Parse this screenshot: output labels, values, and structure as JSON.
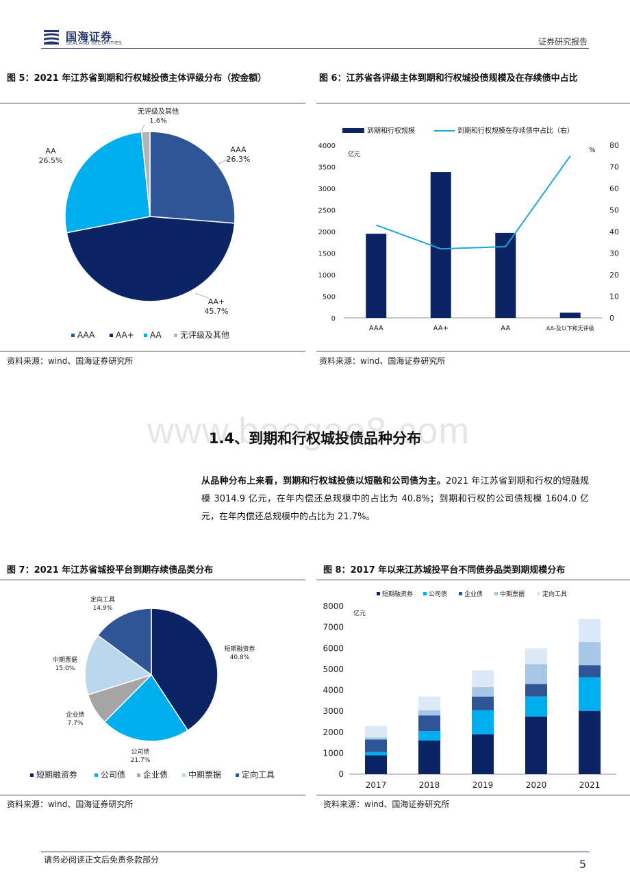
{
  "header": {
    "logo_cn": "国海证券",
    "logo_en": "SEALAND SECURITIES",
    "right": "证券研究报告"
  },
  "fig5": {
    "title": "图 5：2021 年江苏省到期和行权城投债主体评级分布（按金额）",
    "source": "资料来源：wind、国海证券研究所",
    "chart_data": {
      "type": "pie",
      "title": "",
      "slices": [
        {
          "name": "AAA",
          "value": 26.3,
          "label": "26.3%",
          "color": "#2e5596"
        },
        {
          "name": "AA+",
          "value": 45.7,
          "label": "45.7%",
          "color": "#0b2564"
        },
        {
          "name": "AA",
          "value": 26.5,
          "label": "26.5%",
          "color": "#00adef"
        },
        {
          "name": "无评级及其他",
          "value": 1.6,
          "label": "1.6%",
          "color": "#b4b4b4"
        }
      ],
      "legend": [
        "AAA",
        "AA+",
        "AA",
        "无评级及其他"
      ],
      "legend_position": "bottom"
    }
  },
  "fig6": {
    "title": "图 6：江苏省各评级主体到期和行权城投债规模及在存续债中占比",
    "source": "资料来源：wind、国海证券研究所",
    "chart_data": {
      "type": "bar",
      "categories": [
        "AAA",
        "AA+",
        "AA",
        "AA-及以下和无评级"
      ],
      "series": [
        {
          "name": "到期和行权规模",
          "type": "bar",
          "axis": "left",
          "values": [
            1950,
            3380,
            1970,
            120
          ],
          "color": "#0b2564"
        },
        {
          "name": "到期和行权规模在存续债中占比（右）",
          "type": "line",
          "axis": "right",
          "values": [
            43,
            32,
            33,
            75
          ],
          "color": "#1ea6e0"
        }
      ],
      "y_left": {
        "unit": "亿元",
        "min": 0,
        "max": 4000,
        "ticks": [
          0,
          500,
          1000,
          1500,
          2000,
          2500,
          3000,
          3500,
          4000
        ]
      },
      "y_right": {
        "unit": "%",
        "min": 0,
        "max": 80,
        "ticks": [
          0,
          10,
          20,
          30,
          40,
          50,
          60,
          70,
          80
        ]
      },
      "legend_position": "top"
    }
  },
  "section": {
    "heading": "1.4、到期和行权城投债品种分布",
    "watermark": "www.baogao8.com",
    "para_bold": "从品种分布上来看，到期和行权城投债以短融和公司债为主。",
    "para_rest": "2021 年江苏省到期和行权的短融规模 3014.9 亿元，在年内偿还总规模中的占比为 40.8%；到期和行权的公司债规模 1604.0 亿元，在年内偿还总规模中的占比为 21.7%。"
  },
  "fig7": {
    "title": "图 7：2021 年江苏省城投平台到期存续债品类分布",
    "source": "资料来源：wind、国海证券研究所",
    "chart_data": {
      "type": "pie",
      "title": "",
      "slices": [
        {
          "name": "短期融资券",
          "value": 40.8,
          "label": "40.8%",
          "color": "#0b2564"
        },
        {
          "name": "公司债",
          "value": 21.7,
          "label": "21.7%",
          "color": "#00adef"
        },
        {
          "name": "企业债",
          "value": 7.7,
          "label": "7.7%",
          "color": "#a5a5a5"
        },
        {
          "name": "中期票据",
          "value": 15.0,
          "label": "15.0%",
          "color": "#bcd6ee"
        },
        {
          "name": "定向工具",
          "value": 14.9,
          "label": "14.9%",
          "color": "#2e5596"
        }
      ],
      "legend": [
        "短期融资券",
        "公司债",
        "企业债",
        "中期票据",
        "定向工具"
      ],
      "legend_position": "bottom"
    }
  },
  "fig8": {
    "title": "图 8：2017 年以来江苏城投平台不同债券品类到期规模分布",
    "source": "资料来源：wind、国海证券研究所",
    "chart_data": {
      "type": "bar",
      "stacked": true,
      "categories": [
        "2017",
        "2018",
        "2019",
        "2020",
        "2021"
      ],
      "series": [
        {
          "name": "短期融资券",
          "values": [
            900,
            1600,
            1900,
            2750,
            3015
          ],
          "color": "#0b2564"
        },
        {
          "name": "公司债",
          "values": [
            150,
            450,
            1150,
            950,
            1604
          ],
          "color": "#00adef"
        },
        {
          "name": "企业债",
          "values": [
            600,
            750,
            650,
            600,
            570
          ],
          "color": "#2e5596"
        },
        {
          "name": "中期票据",
          "values": [
            100,
            250,
            450,
            950,
            1110
          ],
          "color": "#a7c7e7"
        },
        {
          "name": "定向工具",
          "values": [
            550,
            650,
            800,
            750,
            1100
          ],
          "color": "#dde9f6"
        }
      ],
      "y_left": {
        "unit": "亿元",
        "min": 0,
        "max": 8000,
        "ticks": [
          0,
          1000,
          2000,
          3000,
          4000,
          5000,
          6000,
          7000,
          8000
        ]
      },
      "legend_position": "top"
    }
  },
  "footer": {
    "disclaimer": "请务必阅读正文后免责条款部分",
    "page": "5"
  }
}
